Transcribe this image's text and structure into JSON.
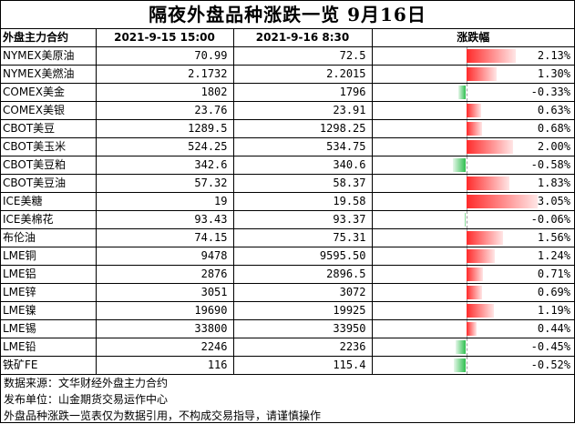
{
  "title": "隔夜外盘品种涨跌一览  9月16日",
  "headers": [
    "外盘主力合约",
    "2021-9-15 15:00",
    "2021-9-16 8:30",
    "涨跌幅"
  ],
  "rows": [
    {
      "name": "NYMEX美原油",
      "prev": "70.99",
      "curr": "72.5",
      "change": "2.13%",
      "pct": 2.13
    },
    {
      "name": "NYMEX美燃油",
      "prev": "2.1732",
      "curr": "2.2015",
      "change": "1.30%",
      "pct": 1.3
    },
    {
      "name": "COMEX美金",
      "prev": "1802",
      "curr": "1796",
      "change": "-0.33%",
      "pct": -0.33
    },
    {
      "name": "COMEX美银",
      "prev": "23.76",
      "curr": "23.91",
      "change": "0.63%",
      "pct": 0.63
    },
    {
      "name": "CBOT美豆",
      "prev": "1289.5",
      "curr": "1298.25",
      "change": "0.68%",
      "pct": 0.68
    },
    {
      "name": "CBOT美玉米",
      "prev": "524.25",
      "curr": "534.75",
      "change": "2.00%",
      "pct": 2.0
    },
    {
      "name": "CBOT美豆粕",
      "prev": "342.6",
      "curr": "340.6",
      "change": "-0.58%",
      "pct": -0.58
    },
    {
      "name": "CBOT美豆油",
      "prev": "57.32",
      "curr": "58.37",
      "change": "1.83%",
      "pct": 1.83
    },
    {
      "name": "ICE美糖",
      "prev": "19",
      "curr": "19.58",
      "change": "3.05%",
      "pct": 3.05
    },
    {
      "name": "ICE美棉花",
      "prev": "93.43",
      "curr": "93.37",
      "change": "-0.06%",
      "pct": -0.06
    },
    {
      "name": "布伦油",
      "prev": "74.15",
      "curr": "75.31",
      "change": "1.56%",
      "pct": 1.56
    },
    {
      "name": "LME铜",
      "prev": "9478",
      "curr": "9595.50",
      "change": "1.24%",
      "pct": 1.24
    },
    {
      "name": "LME铝",
      "prev": "2876",
      "curr": "2896.5",
      "change": "0.71%",
      "pct": 0.71
    },
    {
      "name": "LME锌",
      "prev": "3051",
      "curr": "3072",
      "change": "0.69%",
      "pct": 0.69
    },
    {
      "name": "LME镍",
      "prev": "19690",
      "curr": "19925",
      "change": "1.19%",
      "pct": 1.19
    },
    {
      "name": "LME锡",
      "prev": "33800",
      "curr": "33950",
      "change": "0.44%",
      "pct": 0.44
    },
    {
      "name": "LME铅",
      "prev": "2246",
      "curr": "2236",
      "change": "-0.45%",
      "pct": -0.45
    },
    {
      "name": "铁矿FE",
      "prev": "116",
      "curr": "115.4",
      "change": "-0.52%",
      "pct": -0.52
    }
  ],
  "footer": [
    "数据来源：文华财经外盘主力合约",
    "发布单位：山金期货交易运作中心",
    "外盘品种涨跌一览表仅为数据引用，不构成交易指导，请谨慎操作"
  ],
  "colors": {
    "up": "#ff2b2b",
    "down": "#2fbf4f"
  }
}
